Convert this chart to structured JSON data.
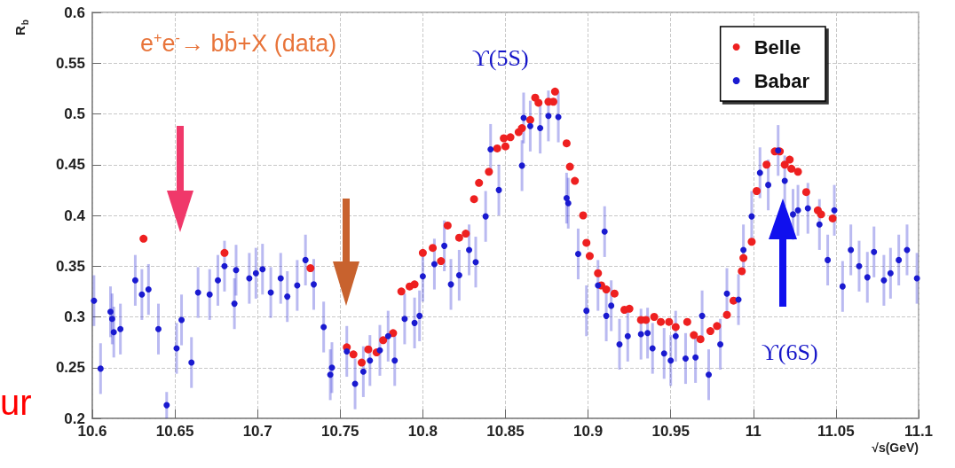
{
  "chart_data": {
    "type": "scatter",
    "xlabel": "√s(GeV)",
    "ylabel": "R$_{b}$",
    "xlim": [
      10.6,
      11.1
    ],
    "xticks": [
      10.6,
      10.65,
      10.7,
      10.75,
      10.8,
      10.85,
      10.9,
      10.95,
      11,
      11.05,
      11.1
    ],
    "ylim": [
      0.2,
      0.6
    ],
    "yticks": [
      0.2,
      0.25,
      0.3,
      0.35,
      0.4,
      0.45,
      0.5,
      0.55,
      0.6
    ],
    "grid": true,
    "legend": "top right",
    "marker": "circle",
    "annotations": [
      "e$^{+}$e$^{-}$→ bb̄+X (data)",
      "ϒ(5S)",
      "ϒ(6S)",
      "ur"
    ],
    "series": [
      {
        "name": "Belle",
        "color": "#ee2020",
        "x": [
          10.631,
          10.68,
          10.732,
          10.754,
          10.758,
          10.763,
          10.767,
          10.772,
          10.776,
          10.782,
          10.787,
          10.792,
          10.795,
          10.8,
          10.806,
          10.811,
          10.815,
          10.822,
          10.826,
          10.831,
          10.834,
          10.84,
          10.845,
          10.849,
          10.85,
          10.853,
          10.858,
          10.86,
          10.865,
          10.868,
          10.87,
          10.876,
          10.879,
          10.88,
          10.887,
          10.889,
          10.892,
          10.897,
          10.899,
          10.901,
          10.906,
          10.908,
          10.911,
          10.916,
          10.922,
          10.925,
          10.932,
          10.935,
          10.94,
          10.944,
          10.949,
          10.953,
          10.96,
          10.964,
          10.968,
          10.974,
          10.978,
          10.984,
          10.988,
          10.993,
          10.994,
          10.999,
          11.002,
          11.008,
          11.013,
          11.016,
          11.019,
          11.022,
          11.023,
          11.027,
          11.032,
          11.039,
          11.041,
          11.048
        ],
        "values": [
          0.377,
          0.363,
          0.348,
          0.27,
          0.263,
          0.255,
          0.268,
          0.265,
          0.277,
          0.284,
          0.325,
          0.33,
          0.332,
          0.363,
          0.368,
          0.355,
          0.39,
          0.378,
          0.382,
          0.416,
          0.432,
          0.443,
          0.466,
          0.476,
          0.468,
          0.477,
          0.482,
          0.486,
          0.494,
          0.516,
          0.511,
          0.512,
          0.512,
          0.522,
          0.471,
          0.448,
          0.434,
          0.4,
          0.373,
          0.36,
          0.343,
          0.331,
          0.327,
          0.323,
          0.307,
          0.308,
          0.297,
          0.297,
          0.3,
          0.295,
          0.295,
          0.29,
          0.295,
          0.282,
          0.278,
          0.286,
          0.291,
          0.302,
          0.316,
          0.345,
          0.358,
          0.374,
          0.424,
          0.45,
          0.463,
          0.463,
          0.45,
          0.455,
          0.446,
          0.443,
          0.423,
          0.405,
          0.401,
          0.397
        ],
        "marker": "circle"
      },
      {
        "name": "Babar",
        "color": "#1a1ad0",
        "x": [
          10.601,
          10.605,
          10.611,
          10.612,
          10.613,
          10.617,
          10.626,
          10.63,
          10.634,
          10.64,
          10.645,
          10.651,
          10.654,
          10.66,
          10.664,
          10.671,
          10.676,
          10.68,
          10.686,
          10.687,
          10.695,
          10.699,
          10.703,
          10.708,
          10.714,
          10.718,
          10.724,
          10.729,
          10.734,
          10.74,
          10.744,
          10.745,
          10.754,
          10.759,
          10.764,
          10.768,
          10.774,
          10.779,
          10.783,
          10.789,
          10.795,
          10.798,
          10.8,
          10.807,
          10.813,
          10.817,
          10.822,
          10.828,
          10.832,
          10.838,
          10.841,
          10.846,
          10.86,
          10.861,
          10.865,
          10.871,
          10.876,
          10.882,
          10.887,
          10.888,
          10.894,
          10.899,
          10.906,
          10.91,
          10.911,
          10.914,
          10.919,
          10.924,
          10.932,
          10.936,
          10.939,
          10.946,
          10.95,
          10.953,
          10.959,
          10.965,
          10.969,
          10.973,
          10.98,
          10.984,
          10.991,
          10.994,
          10.999,
          11.004,
          11.009,
          11.015,
          11.019,
          11.024,
          11.027,
          11.033,
          11.04,
          11.045,
          11.049,
          11.054,
          11.059,
          11.064,
          11.069,
          11.073,
          11.079,
          11.083,
          11.088,
          11.093,
          11.099
        ],
        "values": [
          0.316,
          0.249,
          0.305,
          0.298,
          0.285,
          0.288,
          0.336,
          0.322,
          0.327,
          0.288,
          0.213,
          0.269,
          0.297,
          0.255,
          0.324,
          0.322,
          0.336,
          0.35,
          0.313,
          0.346,
          0.338,
          0.343,
          0.347,
          0.324,
          0.338,
          0.32,
          0.331,
          0.356,
          0.332,
          0.29,
          0.243,
          0.25,
          0.266,
          0.234,
          0.246,
          0.257,
          0.267,
          0.281,
          0.257,
          0.298,
          0.294,
          0.301,
          0.34,
          0.352,
          0.37,
          0.332,
          0.341,
          0.366,
          0.354,
          0.399,
          0.465,
          0.425,
          0.449,
          0.496,
          0.488,
          0.486,
          0.498,
          0.497,
          0.417,
          0.412,
          0.362,
          0.306,
          0.331,
          0.384,
          0.301,
          0.311,
          0.273,
          0.281,
          0.283,
          0.284,
          0.269,
          0.264,
          0.257,
          0.281,
          0.259,
          0.26,
          0.301,
          0.243,
          0.273,
          0.323,
          0.317,
          0.366,
          0.399,
          0.442,
          0.43,
          0.464,
          0.434,
          0.401,
          0.405,
          0.407,
          0.391,
          0.356,
          0.405,
          0.33,
          0.366,
          0.35,
          0.339,
          0.364,
          0.336,
          0.343,
          0.356,
          0.366,
          0.338
        ],
        "errors": [
          0.025,
          0.025,
          0.025,
          0.025,
          0.025,
          0.025,
          0.025,
          0.025,
          0.025,
          0.025,
          0.013,
          0.025,
          0.025,
          0.025,
          0.025,
          0.025,
          0.025,
          0.025,
          0.025,
          0.025,
          0.025,
          0.025,
          0.025,
          0.025,
          0.025,
          0.025,
          0.025,
          0.025,
          0.025,
          0.025,
          0.025,
          0.025,
          0.025,
          0.025,
          0.025,
          0.025,
          0.025,
          0.025,
          0.025,
          0.025,
          0.025,
          0.025,
          0.025,
          0.025,
          0.025,
          0.025,
          0.025,
          0.025,
          0.025,
          0.025,
          0.025,
          0.025,
          0.025,
          0.025,
          0.025,
          0.025,
          0.025,
          0.025,
          0.025,
          0.025,
          0.025,
          0.025,
          0.025,
          0.025,
          0.025,
          0.025,
          0.025,
          0.025,
          0.025,
          0.025,
          0.025,
          0.025,
          0.025,
          0.025,
          0.025,
          0.025,
          0.025,
          0.025,
          0.025,
          0.025,
          0.025,
          0.025,
          0.025,
          0.025,
          0.025,
          0.025,
          0.025,
          0.025,
          0.025,
          0.025,
          0.025,
          0.025,
          0.025,
          0.025,
          0.025,
          0.025,
          0.025,
          0.025,
          0.025,
          0.025,
          0.025,
          0.025,
          0.025
        ]
      }
    ]
  }
}
